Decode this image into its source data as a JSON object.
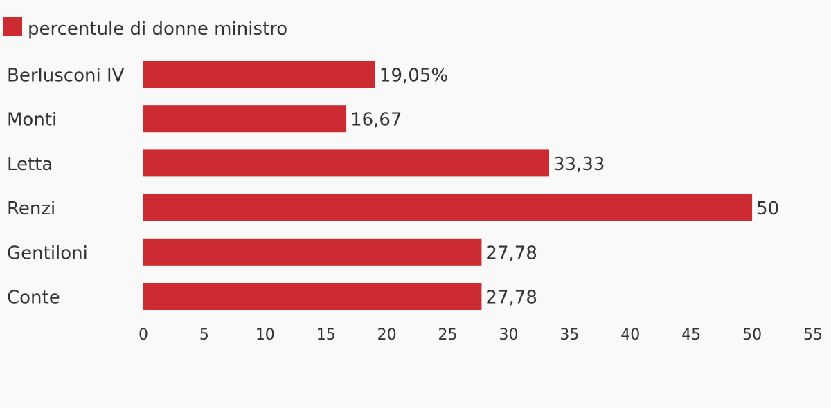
{
  "chart_data": {
    "type": "bar",
    "orientation": "horizontal",
    "legend": {
      "position": "top-left",
      "entries": [
        {
          "name": "percentule di donne ministro",
          "color": "#cc2b31"
        }
      ]
    },
    "categories": [
      "Berlusconi IV",
      "Monti",
      "Letta",
      "Renzi",
      "Gentiloni",
      "Conte"
    ],
    "series": [
      {
        "name": "percentule di donne ministro",
        "color": "#cc2b31",
        "values": [
          19.05,
          16.67,
          33.33,
          50,
          27.78,
          27.78
        ],
        "value_labels": [
          "19,05%",
          "16,67",
          "33,33",
          "50",
          "27,78",
          "27,78"
        ]
      }
    ],
    "xlim": [
      0,
      55
    ],
    "xticks": [
      0,
      5,
      10,
      15,
      20,
      25,
      30,
      35,
      40,
      45,
      50,
      55
    ],
    "grid": false,
    "title": "",
    "xlabel": "",
    "ylabel": ""
  }
}
